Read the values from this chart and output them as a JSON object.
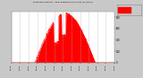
{
  "bg_color": "#c8c8c8",
  "plot_bg_color": "#ffffff",
  "grid_color": "#aaaaaa",
  "fill_color": "#ff0000",
  "text_color": "#000000",
  "ylim": [
    0,
    900
  ],
  "xlim": [
    0,
    1440
  ],
  "num_points": 1440,
  "sunrise": 330,
  "sunset": 1170,
  "peak_minute": 750,
  "peak_value": 870,
  "yticks": [
    0,
    200,
    400,
    600,
    800
  ],
  "xtick_step": 120
}
